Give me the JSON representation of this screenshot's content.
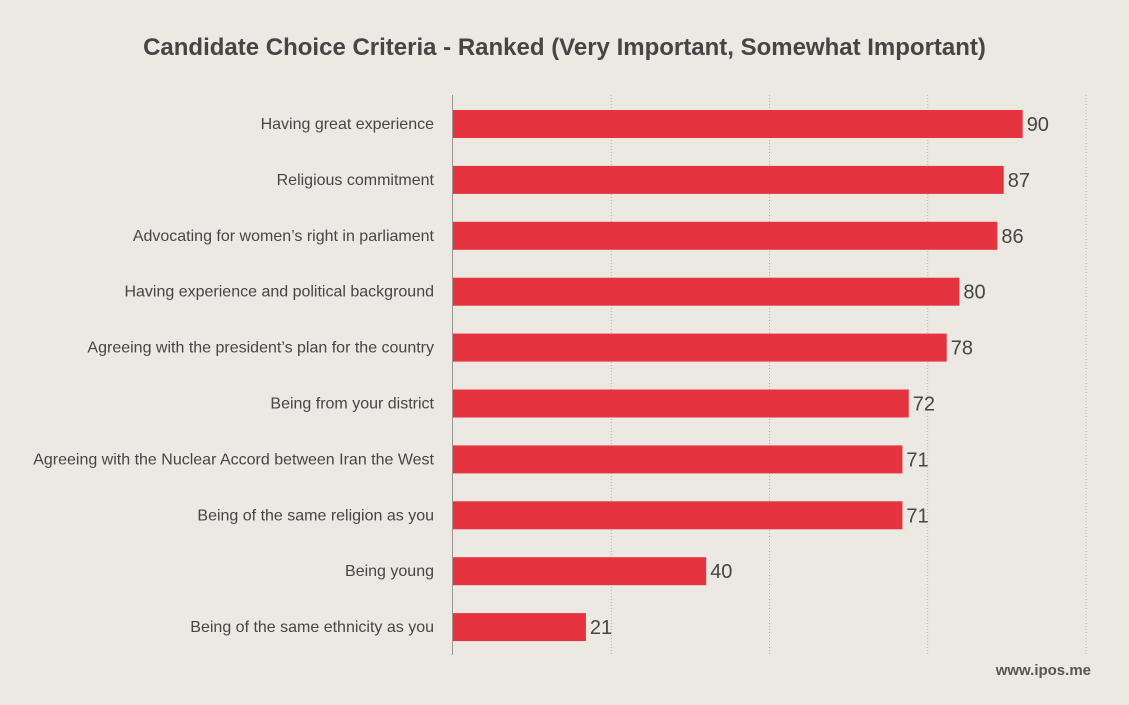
{
  "chart_data": {
    "type": "bar",
    "orientation": "horizontal",
    "title": "Candidate Choice Criteria - Ranked (Very Important, Somewhat Important)",
    "categories": [
      "Having great experience",
      "Religious commitment",
      "Advocating for women’s right in parliament",
      "Having experience and political background",
      "Agreeing with the president’s plan for the country",
      "Being from your district",
      "Agreeing with the Nuclear Accord between Iran the West",
      "Being of the same religion as you",
      "Being young",
      "Being of the same ethnicity as you"
    ],
    "values": [
      90,
      87,
      86,
      80,
      78,
      72,
      71,
      71,
      40,
      21
    ],
    "xlim": [
      0,
      100
    ],
    "grid": "vertical dotted",
    "legend": "none",
    "bar_color": "#e63340"
  },
  "source": "www.ipos.me",
  "colors": {
    "background": "#ece9e3",
    "bar": "#e63340",
    "text": "#454545"
  }
}
